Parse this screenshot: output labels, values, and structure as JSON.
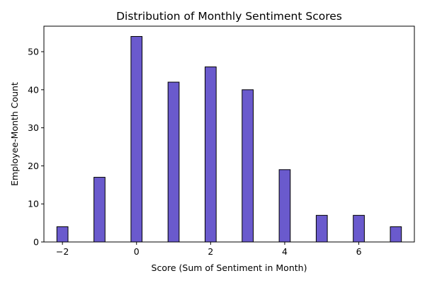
{
  "chart_data": {
    "type": "bar",
    "title": "Distribution of Monthly Sentiment Scores",
    "xlabel": "Score (Sum of Sentiment in Month)",
    "ylabel": "Employee-Month Count",
    "x": [
      -2,
      -1,
      0,
      1,
      2,
      3,
      4,
      5,
      6,
      7
    ],
    "values": [
      4,
      17,
      54,
      42,
      46,
      40,
      19,
      7,
      7,
      4
    ],
    "bar_width": 0.3,
    "xlim": [
      -2.5,
      7.5
    ],
    "ylim": [
      0,
      56.7
    ],
    "xticks": [
      -2,
      0,
      2,
      4,
      6
    ],
    "xtick_labels": [
      "−2",
      "0",
      "2",
      "4",
      "6"
    ],
    "yticks": [
      0,
      10,
      20,
      30,
      40,
      50
    ],
    "ytick_labels": [
      "0",
      "10",
      "20",
      "30",
      "40",
      "50"
    ],
    "grid": false,
    "legend": "none",
    "colors": {
      "bar_fill": "#6a5acd",
      "bar_edge": "#000000"
    }
  }
}
